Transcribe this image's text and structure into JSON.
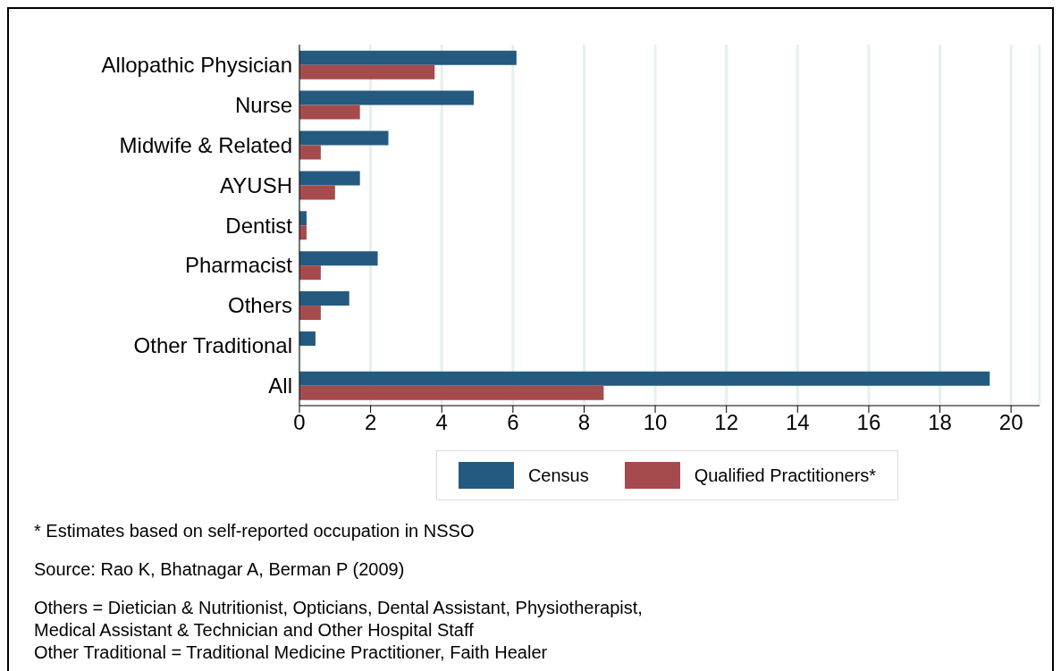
{
  "chart_data": {
    "type": "bar",
    "orientation": "horizontal",
    "categories": [
      "Allopathic Physician",
      "Nurse",
      "Midwife & Related",
      "AYUSH",
      "Dentist",
      "Pharmacist",
      "Others",
      "Other Traditional",
      "All"
    ],
    "series": [
      {
        "name": "Census",
        "color": "#245a80",
        "values": [
          6.1,
          4.9,
          2.5,
          1.7,
          0.2,
          2.2,
          1.4,
          0.45,
          19.4
        ]
      },
      {
        "name": "Qualified Practitioners*",
        "color": "#a54a4d",
        "values": [
          3.8,
          1.7,
          0.6,
          1.0,
          0.2,
          0.6,
          0.6,
          null,
          8.55
        ]
      }
    ],
    "xlim": [
      0,
      20.8
    ],
    "xticks": [
      0,
      2,
      4,
      6,
      8,
      10,
      12,
      14,
      16,
      18,
      20
    ],
    "grid": "x",
    "legend": "bottom",
    "annotations": [
      "* Estimates based on self-reported occupation in NSSO",
      "Source: Rao K, Bhatnagar A, Berman P (2009)",
      "Others = Dietician & Nutritionist, Opticians, Dental Assistant, Physiotherapist,\nMedical Assistant & Technician and Other Hospital Staff\nOther Traditional = Traditional Medicine Practitioner, Faith Healer"
    ]
  }
}
